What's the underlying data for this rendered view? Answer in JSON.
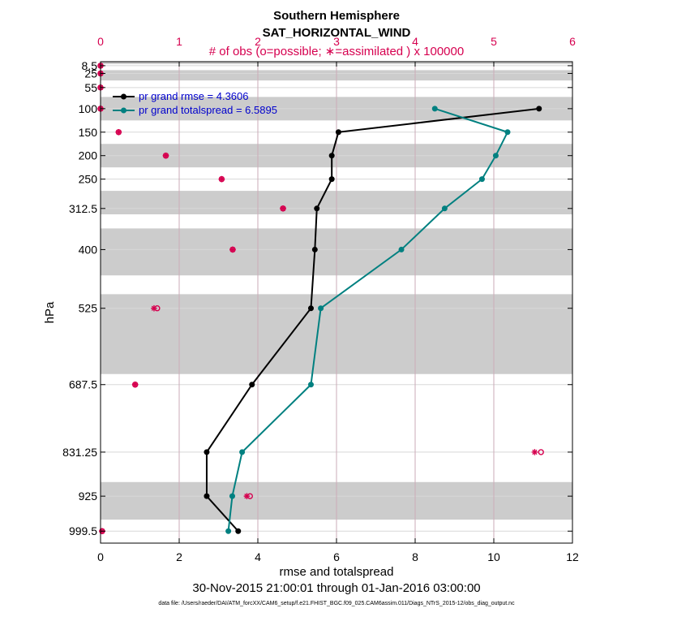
{
  "chart_data": {
    "type": "line",
    "title": "Southern Hemisphere",
    "subtitle": "SAT_HORIZONTAL_WIND",
    "top_axis_label": "# of obs (o=possible; ∗=assimilated ) x 100000",
    "xlabel": "rmse and totalspread",
    "ylabel": "hPa",
    "date_range": "30-Nov-2015 21:00:01 through 01-Jan-2016 03:00:00",
    "footnote": "data file: /Users/raeder/DAI/ATM_forcXX/CAM6_setup/f.e21.FHIST_BGC.f09_025.CAM6assim.011/Diags_NTrS_2015-12/obs_diag_output.nc",
    "xlim": [
      0,
      12
    ],
    "xticks": [
      "0",
      "2",
      "4",
      "6",
      "8",
      "10",
      "12"
    ],
    "top_xlim": [
      0,
      6
    ],
    "top_xticks": [
      "0",
      "1",
      "2",
      "3",
      "4",
      "5",
      "6"
    ],
    "ylim_hpa": [
      1025,
      0
    ],
    "levels": [
      8.5,
      25,
      55,
      100,
      150,
      200,
      250,
      312.5,
      400,
      525,
      687.5,
      831.25,
      925,
      999.5
    ],
    "level_labels": [
      "8.5",
      "25",
      "55",
      "100",
      "150",
      "200",
      "250",
      "312.5",
      "400",
      "525",
      "687.5",
      "831.25",
      "925",
      "999.5"
    ],
    "level_bands": [
      [
        0,
        5
      ],
      [
        18,
        40
      ],
      [
        75,
        125
      ],
      [
        175,
        225
      ],
      [
        275,
        325
      ],
      [
        355,
        455
      ],
      [
        495,
        665
      ],
      [
        895,
        975
      ]
    ],
    "series": [
      {
        "name": "pr grand rmse = 4.3606",
        "color": "#000000",
        "levels": [
          100,
          150,
          200,
          250,
          312.5,
          400,
          525,
          687.5,
          831.25,
          925,
          999.5
        ],
        "values": [
          11.15,
          6.05,
          5.88,
          5.88,
          5.5,
          5.45,
          5.35,
          3.85,
          2.7,
          2.7,
          3.5
        ]
      },
      {
        "name": "pr grand totalspread = 6.5895",
        "color": "#008080",
        "levels": [
          100,
          150,
          200,
          250,
          312.5,
          400,
          525,
          687.5,
          831.25,
          925,
          999.5
        ],
        "values": [
          8.5,
          10.35,
          10.05,
          9.7,
          8.75,
          7.65,
          5.6,
          5.35,
          3.6,
          3.35,
          3.25
        ]
      }
    ],
    "obs_counts": {
      "levels": [
        8.5,
        25,
        55,
        100,
        150,
        200,
        250,
        312.5,
        400,
        525,
        687.5,
        831.25,
        925,
        999.5
      ],
      "possible": [
        0.0,
        0.0,
        0.0,
        0.0,
        0.23,
        0.83,
        1.54,
        2.32,
        1.68,
        0.72,
        0.44,
        5.6,
        1.9,
        0.02
      ],
      "assimilated": [
        0.0,
        0.0,
        0.0,
        0.0,
        0.23,
        0.83,
        1.54,
        2.32,
        1.68,
        0.68,
        0.44,
        5.52,
        1.86,
        0.02
      ]
    }
  },
  "colors": {
    "rmse": "#000000",
    "spread": "#008080",
    "obs": "#d6004f",
    "band": "#cccccc",
    "grid": "#d8d8d8",
    "top_grid": "#c8a0b0"
  }
}
